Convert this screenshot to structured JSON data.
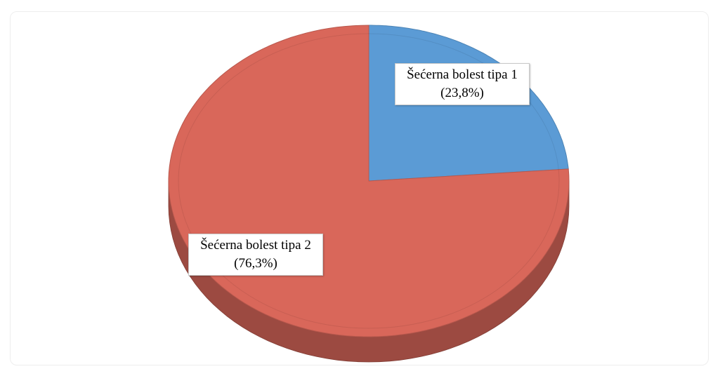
{
  "chart_data": {
    "type": "pie",
    "values": [
      23.8,
      76.3
    ],
    "value_labels": [
      "Šećerna bolest tipa 1 (23,8%)",
      "Šećerna bolest tipa 2 (76,3%)"
    ],
    "colors": [
      "#5b9bd5",
      "#d9675a"
    ]
  }
}
